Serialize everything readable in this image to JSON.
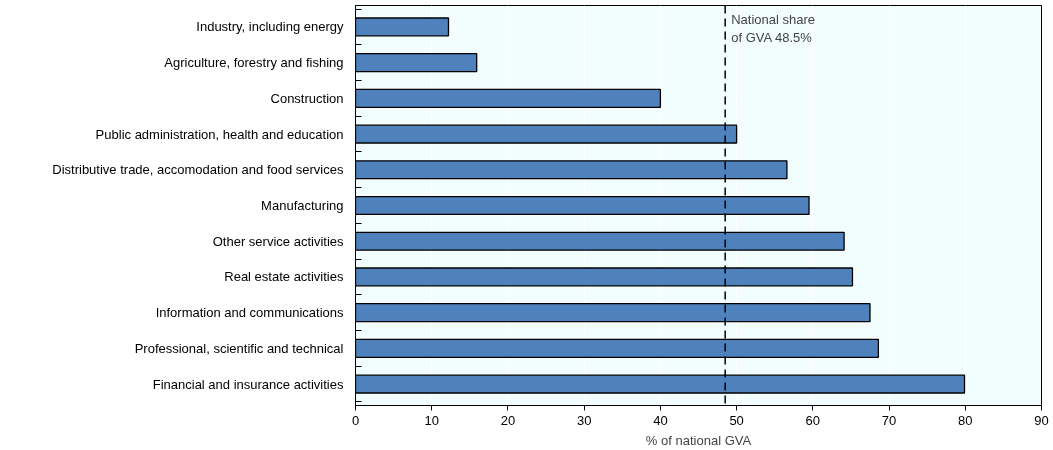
{
  "chart_data": {
    "type": "bar",
    "orientation": "horizontal",
    "xlabel": "% of national GVA",
    "categories": [
      "Industry, including energy",
      "Agriculture, forestry and fishing",
      "Construction",
      "Public administration, health and education",
      "Distributive trade, accomodation and food services",
      "Manufacturing",
      "Other service activities",
      "Real estate activities",
      "Information and communications",
      "Professional, scientific and technical",
      "Financial and insurance activities"
    ],
    "values": [
      12.2,
      15.9,
      40.0,
      50.0,
      56.6,
      59.5,
      64.1,
      65.2,
      67.5,
      68.6,
      79.9
    ],
    "color": "#4f81bd",
    "xlim": [
      0,
      90
    ],
    "xticks": [
      0,
      10,
      20,
      30,
      40,
      50,
      60,
      70,
      80,
      90
    ],
    "grid": "x",
    "ref_lines": [
      {
        "axis": "x",
        "value": 48.5,
        "label": "National share\nof GVA 48.5%",
        "line_style": "dashed",
        "color": "#000000"
      }
    ]
  }
}
